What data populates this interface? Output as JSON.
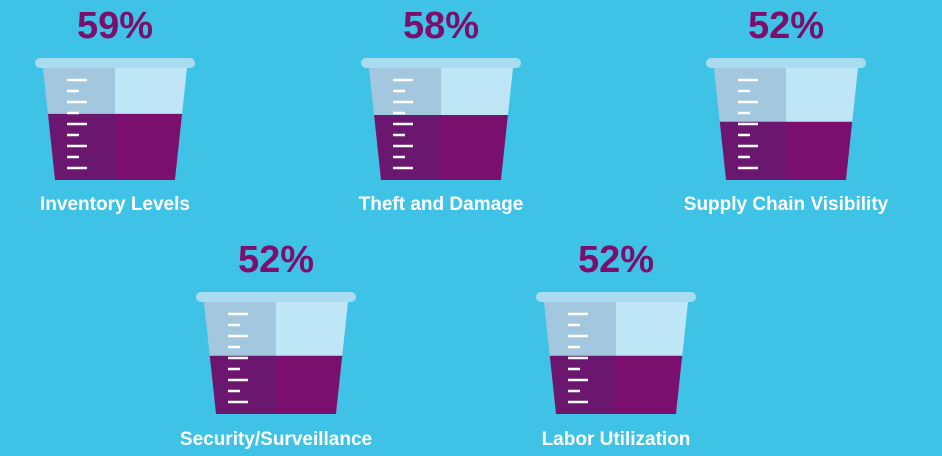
{
  "chart_data": {
    "type": "cup",
    "categories": [
      "Inventory Levels",
      "Theft and Damage",
      "Supply Chain Visibility",
      "Security/Surveillance",
      "Labor Utilization"
    ],
    "values": [
      59,
      58,
      52,
      52,
      52
    ],
    "value_labels": [
      "59%",
      "58%",
      "52%",
      "52%",
      "52%"
    ],
    "ylim": [
      0,
      100
    ],
    "color": "#7b0f6e"
  }
}
